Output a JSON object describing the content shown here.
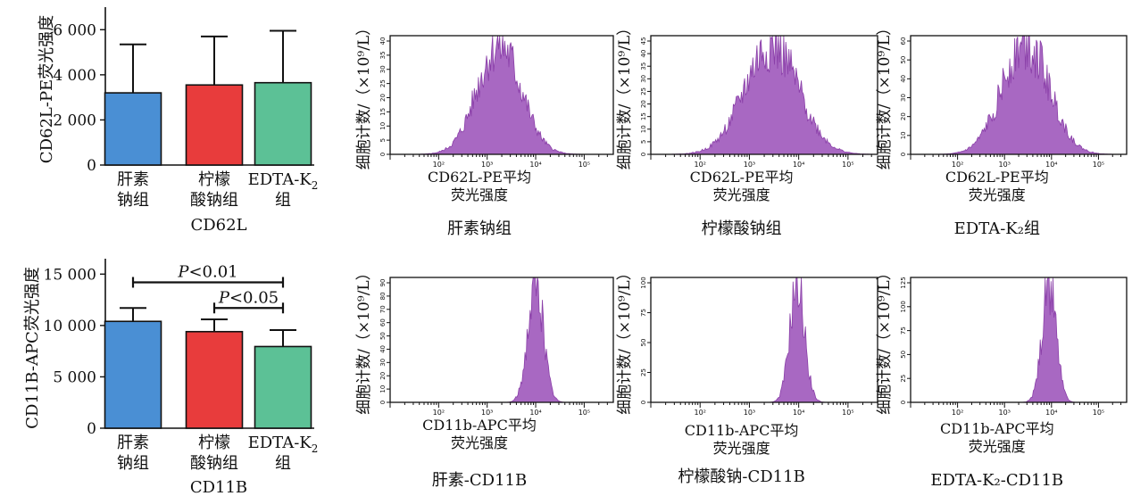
{
  "chart_data": [
    {
      "type": "bar",
      "ylabel": "CD62L-PE荧光强度",
      "xlabel": "CD62L",
      "categories": [
        {
          "lines": [
            "肝素",
            "钠组"
          ]
        },
        {
          "lines": [
            "柠檬",
            "酸钠组"
          ]
        },
        {
          "lines": [
            "EDTA-K",
            "组"
          ],
          "subscript": "2"
        }
      ],
      "values": [
        3200,
        3550,
        3650
      ],
      "error_upper": [
        5350,
        5700,
        5950
      ],
      "ylim": [
        0,
        7000
      ],
      "yticks": [
        0,
        2000,
        4000,
        6000
      ],
      "ytick_labels": [
        "0",
        "2 000",
        "4 000",
        "6 000"
      ],
      "colors": [
        "#4a8fd4",
        "#e83c3c",
        "#5cc196"
      ]
    },
    {
      "type": "bar",
      "ylabel": "CD11B-APC荧光强度",
      "xlabel": "CD11B",
      "categories": [
        {
          "lines": [
            "肝素",
            "钠组"
          ]
        },
        {
          "lines": [
            "柠檬",
            "酸钠组"
          ]
        },
        {
          "lines": [
            "EDTA-K",
            "组"
          ],
          "subscript": "2"
        }
      ],
      "values": [
        10400,
        9400,
        7950
      ],
      "error_upper": [
        11700,
        10600,
        9550
      ],
      "ylim": [
        0,
        16500
      ],
      "yticks": [
        0,
        5000,
        10000,
        15000
      ],
      "ytick_labels": [
        "0",
        "5 000",
        "10 000",
        "15 000"
      ],
      "colors": [
        "#4a8fd4",
        "#e83c3c",
        "#5cc196"
      ],
      "annotations": [
        {
          "from": 0,
          "to": 2,
          "y": 14200,
          "label_italic": "P",
          "label_rest": "<0.01"
        },
        {
          "from": 1,
          "to": 2,
          "y": 11700,
          "label_italic": "P",
          "label_rest": "<0.05"
        }
      ]
    }
  ],
  "histograms": [
    {
      "caption": "肝素钠组",
      "xlabel": [
        "CD62L-PE平均",
        "荧光强度"
      ],
      "ylabel": "细胞计数/（×10⁹/L）",
      "y_ticks": [
        "0",
        "5",
        "10",
        "15",
        "20",
        "25",
        "30",
        "35",
        "40"
      ],
      "peak_log10": 3.25,
      "spread": 0.45,
      "peak_height": 40,
      "ymax": 42
    },
    {
      "caption": "柠檬酸钠组",
      "xlabel": [
        "CD62L-PE平均",
        "荧光强度"
      ],
      "ylabel": "细胞计数/（×10⁹/L）",
      "y_ticks": [
        "0",
        "5",
        "10",
        "15",
        "20",
        "25",
        "30",
        "35",
        "40",
        "45"
      ],
      "peak_log10": 3.45,
      "spread": 0.55,
      "peak_height": 45,
      "ymax": 48
    },
    {
      "caption": "EDTA-K₂组",
      "xlabel": [
        "CD62L-PE平均",
        "荧光强度"
      ],
      "ylabel": "细胞计数/（×10⁹/L）",
      "y_ticks": [
        "0",
        "10",
        "20",
        "30",
        "40",
        "50",
        "60"
      ],
      "peak_log10": 3.45,
      "spread": 0.5,
      "peak_height": 60,
      "ymax": 62
    },
    {
      "caption": "肝素-CD11B",
      "xlabel": [
        "CD11b-APC平均",
        "荧光强度"
      ],
      "ylabel": "细胞计数/（×10⁹/L）",
      "y_ticks": [
        "0",
        "10",
        "20",
        "30",
        "40",
        "50",
        "60",
        "70",
        "80",
        "90"
      ],
      "peak_log10": 4.0,
      "spread": 0.16,
      "peak_height": 90,
      "ymax": 92
    },
    {
      "caption": "柠檬酸钠-CD11B",
      "xlabel": [
        "CD11b-APC平均",
        "荧光强度"
      ],
      "ylabel": "细胞计数/（×10⁹/L）",
      "y_ticks": [
        "0",
        "25",
        "50",
        "75",
        "100"
      ],
      "peak_log10": 3.97,
      "spread": 0.15,
      "peak_height": 110,
      "ymax": 114
    },
    {
      "caption": "EDTA-K₂-CD11B",
      "xlabel": [
        "CD11b-APC平均",
        "荧光强度"
      ],
      "ylabel": "细胞计数/（×10⁹/L）",
      "y_ticks": [
        "0",
        "25",
        "50",
        "75",
        "100",
        "125"
      ],
      "peak_log10": 3.95,
      "spread": 0.15,
      "peak_height": 123,
      "ymax": 127
    }
  ],
  "histogram_xticks": [
    "10²",
    "10³",
    "10⁴",
    "10⁵"
  ],
  "histogram_color": "#a868c2"
}
